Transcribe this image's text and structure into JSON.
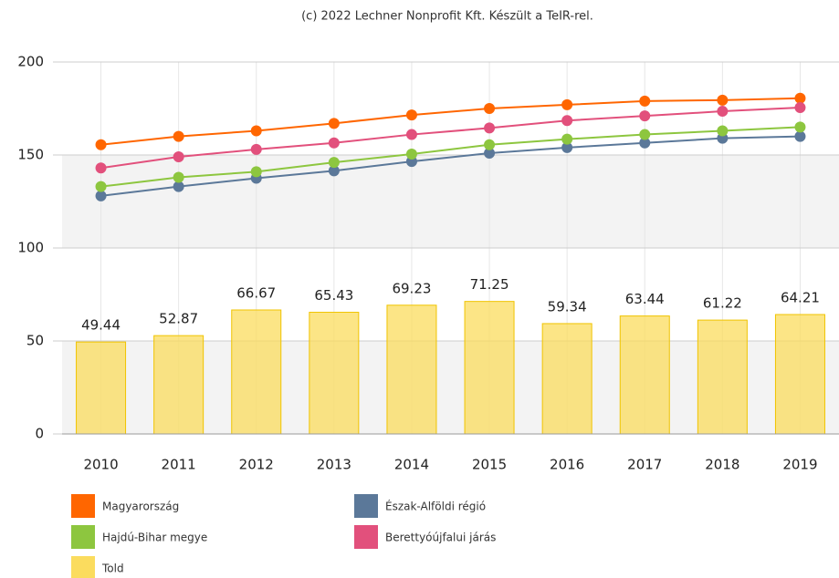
{
  "chart_data": {
    "type": "combo",
    "credits": "(c) 2022 Lechner Nonprofit Kft. Készült a TeIR-rel.",
    "categories": [
      "2010",
      "2011",
      "2012",
      "2013",
      "2014",
      "2015",
      "2016",
      "2017",
      "2018",
      "2019"
    ],
    "ylim": [
      0,
      200
    ],
    "yticks": [
      0,
      50,
      100,
      150,
      200
    ],
    "grid": true,
    "series": [
      {
        "name": "Magyarország",
        "type": "line",
        "color": "#ff6600",
        "values": [
          155.5,
          160,
          163,
          167,
          171.5,
          175,
          177,
          179,
          179.5,
          180.5
        ]
      },
      {
        "name": "Észak-Alföldi régió",
        "type": "line",
        "color": "#5b7899",
        "values": [
          128,
          133,
          137.5,
          141.5,
          146.5,
          151,
          154,
          156.5,
          159,
          160
        ]
      },
      {
        "name": "Hajdú-Bihar megye",
        "type": "line",
        "color": "#8dc63f",
        "values": [
          133,
          138,
          141,
          146,
          150.5,
          155.5,
          158.5,
          161,
          163,
          165
        ]
      },
      {
        "name": "Berettyóújfalui járás",
        "type": "line",
        "color": "#e2507c",
        "values": [
          143,
          149,
          153,
          156.5,
          161,
          164.5,
          168.5,
          171,
          173.5,
          175.5
        ]
      },
      {
        "name": "Told",
        "type": "bar",
        "color": "#fbdc5e",
        "values": [
          49.44,
          52.87,
          66.67,
          65.43,
          69.23,
          71.25,
          59.34,
          63.44,
          61.22,
          64.21
        ]
      }
    ]
  }
}
